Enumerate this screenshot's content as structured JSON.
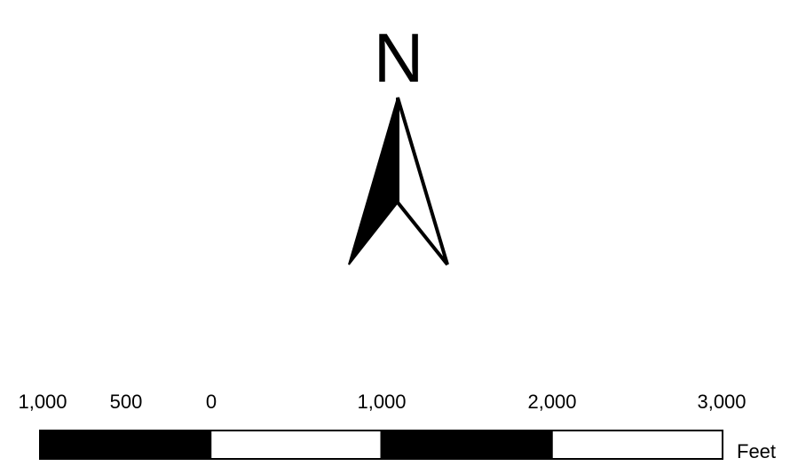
{
  "north_arrow": {
    "letter": "N",
    "icon": "north-arrow-icon",
    "fill_color": "#000000",
    "stroke_color": "#000000"
  },
  "scale_bar": {
    "ticks": [
      "1,000",
      "500",
      "0",
      "1,000",
      "2,000",
      "3,000"
    ],
    "units": "Feet",
    "segments": [
      {
        "from": -1000,
        "to": 0,
        "fill": "#000000"
      },
      {
        "from": 0,
        "to": 1000,
        "fill": "#ffffff"
      },
      {
        "from": 1000,
        "to": 2000,
        "fill": "#000000"
      },
      {
        "from": 2000,
        "to": 3000,
        "fill": "#ffffff"
      }
    ]
  }
}
